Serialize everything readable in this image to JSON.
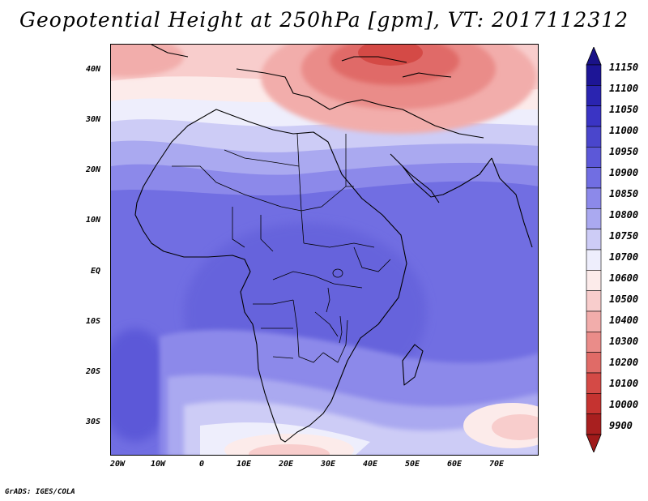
{
  "title": "Geopotential Height at 250hPa [gpm], VT: 2017112312",
  "credit": "GrADS: IGES/COLA",
  "map": {
    "variable": "geopotential height",
    "level": "250hPa",
    "units": "gpm",
    "valid_time": "2017112312",
    "lon_range": [
      -25,
      80
    ],
    "lat_range": [
      -37,
      45
    ],
    "y_axis_labels": [
      "40N",
      "30N",
      "20N",
      "10N",
      "EQ",
      "10S",
      "20S",
      "30S"
    ],
    "x_axis_labels": [
      "20W",
      "10W",
      "0",
      "10E",
      "20E",
      "30E",
      "40E",
      "50E",
      "60E",
      "70E"
    ]
  },
  "colorbar": {
    "labels": [
      "11150",
      "11100",
      "11050",
      "11000",
      "10950",
      "10900",
      "10850",
      "10800",
      "10750",
      "10700",
      "10600",
      "10500",
      "10400",
      "10300",
      "10200",
      "10100",
      "10000",
      "9900"
    ],
    "colors": [
      "#1d1596",
      "#2a24b0",
      "#3a34c4",
      "#4a46cc",
      "#5c58d8",
      "#716ee2",
      "#8c89ea",
      "#aaa9f0",
      "#cdccf6",
      "#eeeefc",
      "#fcebea",
      "#f8cdcc",
      "#f2adab",
      "#ea8c89",
      "#e06b67",
      "#d44a46",
      "#c53330",
      "#a81f1f"
    ],
    "top_tip_color": "#1a1288",
    "bottom_tip_color": "#a01a1a"
  }
}
